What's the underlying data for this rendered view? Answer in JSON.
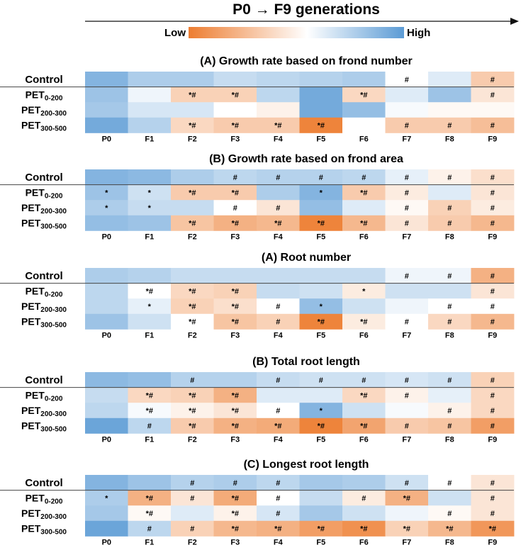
{
  "header": {
    "title": "P0 → F9 generations",
    "legend_low": "Low",
    "legend_high": "High",
    "colors": {
      "low": "#ed7d31",
      "mid": "#ffffff",
      "high": "#5b9bd5"
    }
  },
  "chart_data": [
    {
      "type": "heatmap",
      "title": "(A) Growth rate based on frond number",
      "columns": [
        "P0",
        "F1",
        "F2",
        "F3",
        "F4",
        "F5",
        "F6",
        "F7",
        "F8",
        "F9"
      ],
      "rows": [
        {
          "label": "Control",
          "sub": "",
          "values": [
            0.75,
            0.5,
            0.5,
            0.35,
            0.4,
            0.45,
            0.5,
            0.0,
            0.2,
            -0.4
          ],
          "marks": [
            "",
            "",
            "",
            "",
            "",
            "",
            "",
            "#",
            "",
            "#"
          ]
        },
        {
          "label": "PET",
          "sub": "0-200",
          "values": [
            0.6,
            0.1,
            -0.35,
            -0.35,
            0.4,
            0.85,
            -0.3,
            0.2,
            0.6,
            -0.2
          ],
          "marks": [
            "",
            "",
            "*#",
            "*#",
            "",
            "",
            "*#",
            "",
            "",
            "#"
          ]
        },
        {
          "label": "PET",
          "sub": "200-300",
          "values": [
            0.55,
            0.25,
            0.25,
            0.0,
            -0.1,
            0.85,
            0.65,
            0.05,
            -0.05,
            -0.05
          ],
          "marks": [
            "",
            "",
            "",
            "",
            "",
            "",
            "",
            "",
            "",
            ""
          ]
        },
        {
          "label": "PET",
          "sub": "300-500",
          "values": [
            0.85,
            0.45,
            -0.3,
            -0.4,
            -0.4,
            -0.95,
            0.0,
            -0.4,
            -0.4,
            -0.5
          ],
          "marks": [
            "",
            "",
            "*#",
            "*#",
            "*#",
            "*#",
            "",
            "#",
            "#",
            "#"
          ]
        }
      ]
    },
    {
      "type": "heatmap",
      "title": "(B) Growth rate based on frond area",
      "columns": [
        "P0",
        "F1",
        "F2",
        "F3",
        "F4",
        "F5",
        "F6",
        "F7",
        "F8",
        "F9"
      ],
      "rows": [
        {
          "label": "Control",
          "sub": "",
          "values": [
            0.75,
            0.7,
            0.5,
            0.4,
            0.45,
            0.45,
            0.4,
            0.15,
            -0.1,
            -0.25
          ],
          "marks": [
            "",
            "",
            "",
            "#",
            "#",
            "#",
            "#",
            "#",
            "#",
            "#"
          ]
        },
        {
          "label": "PET",
          "sub": "0-200",
          "values": [
            0.6,
            0.3,
            -0.4,
            -0.4,
            0.5,
            0.75,
            -0.4,
            -0.15,
            0.2,
            -0.2
          ],
          "marks": [
            "*",
            "*",
            "*#",
            "*#",
            "",
            "*",
            "*#",
            "#",
            "",
            "#"
          ]
        },
        {
          "label": "PET",
          "sub": "200-300",
          "values": [
            0.5,
            0.35,
            0.35,
            0.0,
            -0.2,
            0.65,
            0.2,
            -0.05,
            -0.35,
            -0.15
          ],
          "marks": [
            "*",
            "*",
            "",
            "#",
            "#",
            "",
            "",
            "#",
            "#",
            "#"
          ]
        },
        {
          "label": "PET",
          "sub": "300-500",
          "values": [
            0.65,
            0.6,
            -0.45,
            -0.6,
            -0.55,
            -0.95,
            -0.55,
            -0.2,
            -0.4,
            -0.55
          ],
          "marks": [
            "",
            "",
            "*#",
            "*#",
            "*#",
            "*#",
            "*#",
            "#",
            "#",
            "#"
          ]
        }
      ]
    },
    {
      "type": "heatmap",
      "title": "(A) Root number",
      "columns": [
        "P0",
        "F1",
        "F2",
        "F3",
        "F4",
        "F5",
        "F6",
        "F7",
        "F8",
        "F9"
      ],
      "rows": [
        {
          "label": "Control",
          "sub": "",
          "values": [
            0.5,
            0.45,
            0.35,
            0.35,
            0.35,
            0.35,
            0.35,
            0.1,
            0.1,
            -0.6
          ],
          "marks": [
            "",
            "",
            "",
            "",
            "",
            "",
            "",
            "#",
            "#",
            "#"
          ]
        },
        {
          "label": "PET",
          "sub": "0-200",
          "values": [
            0.4,
            0.0,
            -0.3,
            -0.35,
            0.35,
            0.3,
            -0.15,
            0.3,
            0.3,
            -0.2
          ],
          "marks": [
            "",
            "*#",
            "*#",
            "*#",
            "",
            "",
            "*",
            "",
            "",
            "#"
          ]
        },
        {
          "label": "PET",
          "sub": "200-300",
          "values": [
            0.4,
            0.15,
            -0.35,
            -0.25,
            0.0,
            0.65,
            0.3,
            0.1,
            0.0,
            0.0
          ],
          "marks": [
            "",
            "*",
            "*#",
            "*#",
            "#",
            "*",
            "",
            "",
            "#",
            "#"
          ]
        },
        {
          "label": "PET",
          "sub": "300-500",
          "values": [
            0.6,
            0.3,
            0.0,
            -0.45,
            -0.35,
            -0.95,
            -0.15,
            0.0,
            -0.3,
            -0.55
          ],
          "marks": [
            "",
            "",
            "*#",
            "*#",
            "#",
            "*#",
            "*#",
            "#",
            "#",
            "#"
          ]
        }
      ]
    },
    {
      "type": "heatmap",
      "title": "(B) Total root length",
      "columns": [
        "P0",
        "F1",
        "F2",
        "F3",
        "F4",
        "F5",
        "F6",
        "F7",
        "F8",
        "F9"
      ],
      "rows": [
        {
          "label": "Control",
          "sub": "",
          "values": [
            0.7,
            0.65,
            0.45,
            0.45,
            0.35,
            0.3,
            0.3,
            0.25,
            0.3,
            -0.35
          ],
          "marks": [
            "",
            "",
            "#",
            "",
            "#",
            "#",
            "#",
            "#",
            "#",
            "#"
          ]
        },
        {
          "label": "PET",
          "sub": "0-200",
          "values": [
            0.35,
            -0.3,
            -0.35,
            -0.6,
            0.2,
            0.2,
            -0.3,
            -0.1,
            0.15,
            -0.3
          ],
          "marks": [
            "",
            "*#",
            "*#",
            "*#",
            "",
            "",
            "*#",
            "#",
            "",
            "#"
          ]
        },
        {
          "label": "PET",
          "sub": "200-300",
          "values": [
            0.4,
            0.05,
            -0.1,
            -0.2,
            0.0,
            0.75,
            0.3,
            0.05,
            -0.1,
            -0.3
          ],
          "marks": [
            "",
            "*#",
            "*#",
            "*#",
            "#",
            "*",
            "",
            "",
            "#",
            "#"
          ]
        },
        {
          "label": "PET",
          "sub": "300-500",
          "values": [
            0.9,
            0.4,
            -0.4,
            -0.6,
            -0.65,
            -0.95,
            -0.7,
            -0.4,
            -0.45,
            -0.75
          ],
          "marks": [
            "",
            "#",
            "*#",
            "*#",
            "*#",
            "*#",
            "*#",
            "#",
            "#",
            "#"
          ]
        }
      ]
    },
    {
      "type": "heatmap",
      "title": "(C) Longest root length",
      "columns": [
        "P0",
        "F1",
        "F2",
        "F3",
        "F4",
        "F5",
        "F6",
        "F7",
        "F8",
        "F9"
      ],
      "rows": [
        {
          "label": "Control",
          "sub": "",
          "values": [
            0.75,
            0.6,
            0.45,
            0.5,
            0.4,
            0.55,
            0.5,
            0.3,
            0.0,
            -0.2
          ],
          "marks": [
            "",
            "",
            "#",
            "#",
            "#",
            "",
            "",
            "#",
            "#",
            "#"
          ]
        },
        {
          "label": "PET",
          "sub": "0-200",
          "values": [
            0.5,
            -0.6,
            -0.2,
            -0.65,
            0.0,
            0.35,
            -0.15,
            -0.6,
            0.3,
            -0.2
          ],
          "marks": [
            "*",
            "*#",
            "#",
            "*#",
            "#",
            "",
            "#",
            "*#",
            "",
            "#"
          ]
        },
        {
          "label": "PET",
          "sub": "200-300",
          "values": [
            0.55,
            -0.05,
            0.2,
            -0.1,
            0.25,
            0.55,
            0.3,
            0.1,
            -0.05,
            -0.2
          ],
          "marks": [
            "",
            "*#",
            "",
            "*#",
            "#",
            "",
            "",
            "",
            "#",
            "#"
          ]
        },
        {
          "label": "PET",
          "sub": "300-500",
          "values": [
            0.9,
            0.4,
            -0.35,
            -0.55,
            -0.6,
            -0.75,
            -0.85,
            -0.35,
            -0.55,
            -0.8
          ],
          "marks": [
            "",
            "#",
            "#",
            "*#",
            "*#",
            "*#",
            "*#",
            "*#",
            "*#",
            "*#"
          ]
        }
      ]
    }
  ]
}
